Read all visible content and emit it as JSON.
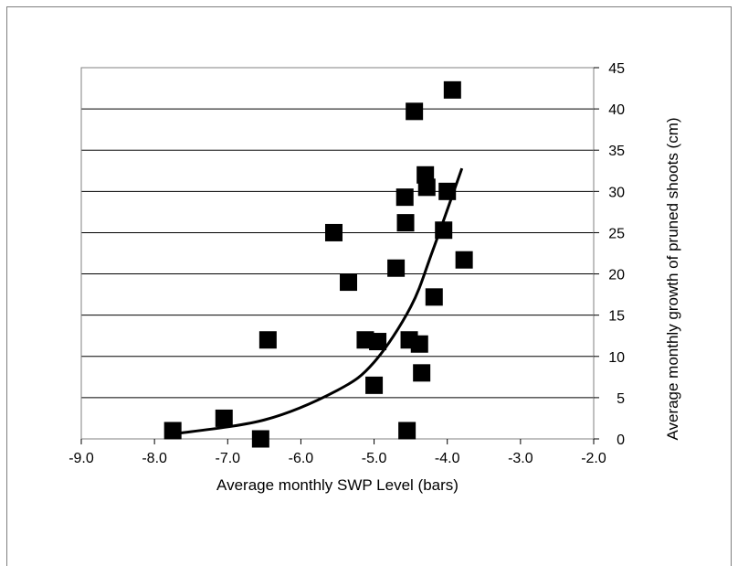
{
  "chart_data": {
    "type": "scatter",
    "title": "",
    "xlabel": "Average monthly SWP Level (bars)",
    "ylabel": "Average monthly growth of pruned shoots (cm)",
    "xlim": [
      -9.0,
      -2.0
    ],
    "ylim": [
      0,
      45
    ],
    "x_ticks": [
      "-9.0",
      "-8.0",
      "-7.0",
      "-6.0",
      "-5.0",
      "-4.0",
      "-3.0",
      "-2.0"
    ],
    "y_ticks": [
      "0",
      "5",
      "10",
      "15",
      "20",
      "25",
      "30",
      "35",
      "40",
      "45"
    ],
    "y_axis_side": "right",
    "grid": "horizontal",
    "legend": "none",
    "marker": "square",
    "marker_color": "#000000",
    "points": [
      {
        "x": -7.75,
        "y": 1.0
      },
      {
        "x": -7.05,
        "y": 2.5
      },
      {
        "x": -6.55,
        "y": 0.0
      },
      {
        "x": -6.45,
        "y": 12.0
      },
      {
        "x": -5.55,
        "y": 25.0
      },
      {
        "x": -5.35,
        "y": 19.0
      },
      {
        "x": -5.12,
        "y": 12.0
      },
      {
        "x": -4.95,
        "y": 11.8
      },
      {
        "x": -5.0,
        "y": 6.5
      },
      {
        "x": -4.7,
        "y": 20.7
      },
      {
        "x": -4.58,
        "y": 29.3
      },
      {
        "x": -4.57,
        "y": 26.2
      },
      {
        "x": -4.55,
        "y": 1.0
      },
      {
        "x": -4.52,
        "y": 12.0
      },
      {
        "x": -4.45,
        "y": 39.7
      },
      {
        "x": -4.38,
        "y": 11.5
      },
      {
        "x": -4.35,
        "y": 8.0
      },
      {
        "x": -4.3,
        "y": 32.0
      },
      {
        "x": -4.28,
        "y": 30.5
      },
      {
        "x": -4.18,
        "y": 17.2
      },
      {
        "x": -4.05,
        "y": 25.3
      },
      {
        "x": -4.0,
        "y": 30.0
      },
      {
        "x": -3.93,
        "y": 42.3
      },
      {
        "x": -3.77,
        "y": 21.7
      }
    ],
    "trendline": {
      "type": "exponential",
      "color": "#000000",
      "x_range": [
        -7.75,
        -3.8
      ],
      "points": [
        {
          "x": -7.75,
          "y": 0.6
        },
        {
          "x": -6.5,
          "y": 2.3
        },
        {
          "x": -5.5,
          "y": 5.9
        },
        {
          "x": -5.0,
          "y": 9.3
        },
        {
          "x": -4.5,
          "y": 16.0
        },
        {
          "x": -4.2,
          "y": 22.8
        },
        {
          "x": -3.8,
          "y": 32.8
        }
      ]
    }
  }
}
